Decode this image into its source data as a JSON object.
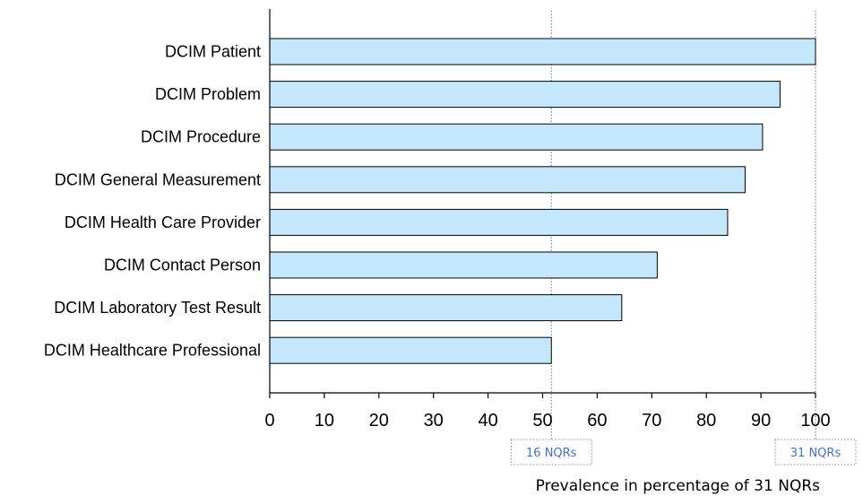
{
  "chart_data": {
    "type": "bar",
    "orientation": "horizontal",
    "categories": [
      "DCIM Patient",
      "DCIM Problem",
      "DCIM Procedure",
      "DCIM General Measurement",
      "DCIM Health Care Provider",
      "DCIM Contact Person",
      "DCIM Laboratory Test Result",
      "DCIM Healthcare Professional"
    ],
    "values": [
      100,
      93.5,
      90.3,
      87.1,
      83.9,
      71,
      64.5,
      51.6
    ],
    "xlabel": "Prevalence in percentage of 31 NQRs",
    "xlim": [
      0,
      100
    ],
    "xticks": [
      0,
      10,
      20,
      30,
      40,
      50,
      60,
      70,
      80,
      90,
      100
    ],
    "grid": false,
    "legend": "none",
    "bar_fill": "#c5e7fb",
    "bar_stroke": "#000000",
    "reference_lines": [
      {
        "x": 51.6,
        "label": "16 NQRs",
        "color": "#4472c4"
      },
      {
        "x": 100,
        "label": "31 NQRs",
        "color": "#4472c4"
      }
    ]
  }
}
